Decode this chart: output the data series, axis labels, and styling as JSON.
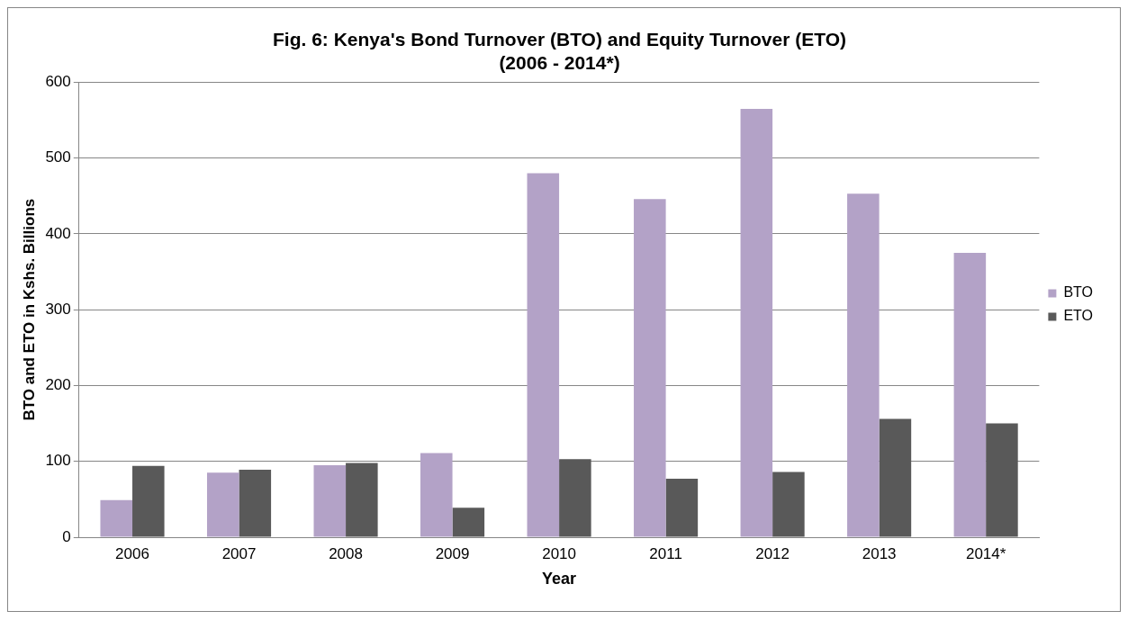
{
  "chart_data": {
    "type": "bar",
    "title": "Fig. 6: Kenya's Bond Turnover (BTO) and Equity Turnover (ETO)\n(2006 - 2014*)",
    "xlabel": "Year",
    "ylabel": "BTO and ETO in Kshs. Billions",
    "categories": [
      "2006",
      "2007",
      "2008",
      "2009",
      "2010",
      "2011",
      "2012",
      "2013",
      "2014*"
    ],
    "series": [
      {
        "name": "BTO",
        "color": "#b3a2c7",
        "values": [
          49,
          85,
          95,
          111,
          480,
          446,
          565,
          453,
          375
        ]
      },
      {
        "name": "ETO",
        "color": "#595959",
        "values": [
          94,
          89,
          98,
          39,
          103,
          77,
          86,
          156,
          150
        ]
      }
    ],
    "ylim": [
      0,
      600
    ],
    "yticks": [
      0,
      100,
      200,
      300,
      400,
      500,
      600
    ],
    "grid": "y",
    "legend": "right"
  }
}
